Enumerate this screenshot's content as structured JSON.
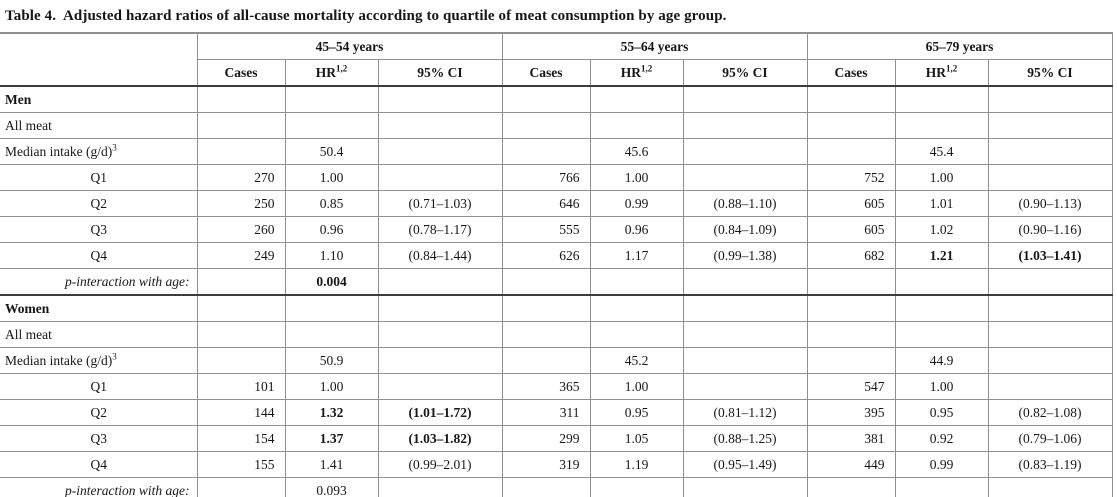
{
  "title": "Table 4.  Adjusted hazard ratios of all-cause mortality according to quartile of meat consumption by age group.",
  "table": {
    "age_groups": [
      {
        "label": "45–54 years"
      },
      {
        "label": "55–64 years"
      },
      {
        "label": "65–79 years"
      }
    ],
    "sub_headers": {
      "cases": "Cases",
      "hr": "HR",
      "hr_sup": "1,2",
      "ci": "95% CI"
    },
    "rows": [
      {
        "type": "section",
        "label": "Men",
        "cells": [
          {
            "v": ""
          },
          {
            "v": ""
          },
          {
            "v": ""
          },
          {
            "v": ""
          },
          {
            "v": ""
          },
          {
            "v": ""
          },
          {
            "v": ""
          },
          {
            "v": ""
          },
          {
            "v": ""
          }
        ]
      },
      {
        "type": "plain",
        "label": "All meat",
        "cells": [
          {
            "v": ""
          },
          {
            "v": ""
          },
          {
            "v": ""
          },
          {
            "v": ""
          },
          {
            "v": ""
          },
          {
            "v": ""
          },
          {
            "v": ""
          },
          {
            "v": ""
          },
          {
            "v": ""
          }
        ]
      },
      {
        "type": "plain",
        "label": "Median intake (g/d)",
        "sup": "3",
        "cells": [
          {
            "v": ""
          },
          {
            "v": "50.4"
          },
          {
            "v": ""
          },
          {
            "v": ""
          },
          {
            "v": "45.6"
          },
          {
            "v": ""
          },
          {
            "v": ""
          },
          {
            "v": "45.4"
          },
          {
            "v": ""
          }
        ]
      },
      {
        "type": "quartile",
        "label": "Q1",
        "cells": [
          {
            "v": "270"
          },
          {
            "v": "1.00"
          },
          {
            "v": ""
          },
          {
            "v": "766"
          },
          {
            "v": "1.00"
          },
          {
            "v": ""
          },
          {
            "v": "752"
          },
          {
            "v": "1.00"
          },
          {
            "v": ""
          }
        ]
      },
      {
        "type": "quartile",
        "label": "Q2",
        "cells": [
          {
            "v": "250"
          },
          {
            "v": "0.85"
          },
          {
            "v": "(0.71–1.03)"
          },
          {
            "v": "646"
          },
          {
            "v": "0.99"
          },
          {
            "v": "(0.88–1.10)"
          },
          {
            "v": "605"
          },
          {
            "v": "1.01"
          },
          {
            "v": "(0.90–1.13)"
          }
        ]
      },
      {
        "type": "quartile",
        "label": "Q3",
        "cells": [
          {
            "v": "260"
          },
          {
            "v": "0.96"
          },
          {
            "v": "(0.78–1.17)"
          },
          {
            "v": "555"
          },
          {
            "v": "0.96"
          },
          {
            "v": "(0.84–1.09)"
          },
          {
            "v": "605"
          },
          {
            "v": "1.02"
          },
          {
            "v": "(0.90–1.16)"
          }
        ]
      },
      {
        "type": "quartile",
        "label": "Q4",
        "cells": [
          {
            "v": "249"
          },
          {
            "v": "1.10"
          },
          {
            "v": "(0.84–1.44)"
          },
          {
            "v": "626"
          },
          {
            "v": "1.17"
          },
          {
            "v": "(0.99–1.38)"
          },
          {
            "v": "682"
          },
          {
            "v": "1.21",
            "b": true
          },
          {
            "v": "(1.03–1.41)",
            "b": true
          }
        ]
      },
      {
        "type": "pvalue",
        "label": "p-interaction with age:",
        "cells": [
          {
            "v": ""
          },
          {
            "v": "0.004",
            "b": true
          },
          {
            "v": ""
          },
          {
            "v": ""
          },
          {
            "v": ""
          },
          {
            "v": ""
          },
          {
            "v": ""
          },
          {
            "v": ""
          },
          {
            "v": ""
          }
        ]
      },
      {
        "type": "section",
        "label": "Women",
        "cells": [
          {
            "v": ""
          },
          {
            "v": ""
          },
          {
            "v": ""
          },
          {
            "v": ""
          },
          {
            "v": ""
          },
          {
            "v": ""
          },
          {
            "v": ""
          },
          {
            "v": ""
          },
          {
            "v": ""
          }
        ]
      },
      {
        "type": "plain",
        "label": "All meat",
        "cells": [
          {
            "v": ""
          },
          {
            "v": ""
          },
          {
            "v": ""
          },
          {
            "v": ""
          },
          {
            "v": ""
          },
          {
            "v": ""
          },
          {
            "v": ""
          },
          {
            "v": ""
          },
          {
            "v": ""
          }
        ]
      },
      {
        "type": "plain",
        "label": "Median intake (g/d)",
        "sup": "3",
        "cells": [
          {
            "v": ""
          },
          {
            "v": "50.9"
          },
          {
            "v": ""
          },
          {
            "v": ""
          },
          {
            "v": "45.2"
          },
          {
            "v": ""
          },
          {
            "v": ""
          },
          {
            "v": "44.9"
          },
          {
            "v": ""
          }
        ]
      },
      {
        "type": "quartile",
        "label": "Q1",
        "cells": [
          {
            "v": "101"
          },
          {
            "v": "1.00"
          },
          {
            "v": ""
          },
          {
            "v": "365"
          },
          {
            "v": "1.00"
          },
          {
            "v": ""
          },
          {
            "v": "547"
          },
          {
            "v": "1.00"
          },
          {
            "v": ""
          }
        ]
      },
      {
        "type": "quartile",
        "label": "Q2",
        "cells": [
          {
            "v": "144"
          },
          {
            "v": "1.32",
            "b": true
          },
          {
            "v": "(1.01–1.72)",
            "b": true
          },
          {
            "v": "311"
          },
          {
            "v": "0.95"
          },
          {
            "v": "(0.81–1.12)"
          },
          {
            "v": "395"
          },
          {
            "v": "0.95"
          },
          {
            "v": "(0.82–1.08)"
          }
        ]
      },
      {
        "type": "quartile",
        "label": "Q3",
        "cells": [
          {
            "v": "154"
          },
          {
            "v": "1.37",
            "b": true
          },
          {
            "v": "(1.03–1.82)",
            "b": true
          },
          {
            "v": "299"
          },
          {
            "v": "1.05"
          },
          {
            "v": "(0.88–1.25)"
          },
          {
            "v": "381"
          },
          {
            "v": "0.92"
          },
          {
            "v": "(0.79–1.06)"
          }
        ]
      },
      {
        "type": "quartile",
        "label": "Q4",
        "cells": [
          {
            "v": "155"
          },
          {
            "v": "1.41"
          },
          {
            "v": "(0.99–2.01)"
          },
          {
            "v": "319"
          },
          {
            "v": "1.19"
          },
          {
            "v": "(0.95–1.49)"
          },
          {
            "v": "449"
          },
          {
            "v": "0.99"
          },
          {
            "v": "(0.83–1.19)"
          }
        ]
      },
      {
        "type": "pvalue",
        "label": "p-interaction with age:",
        "cells": [
          {
            "v": ""
          },
          {
            "v": "0.093"
          },
          {
            "v": ""
          },
          {
            "v": ""
          },
          {
            "v": ""
          },
          {
            "v": ""
          },
          {
            "v": ""
          },
          {
            "v": ""
          },
          {
            "v": ""
          }
        ]
      }
    ]
  },
  "colors": {
    "grid_line": "#8f8f8f",
    "section_rule": "#3c3c3c",
    "text": "#161616",
    "background": "#ffffff"
  }
}
